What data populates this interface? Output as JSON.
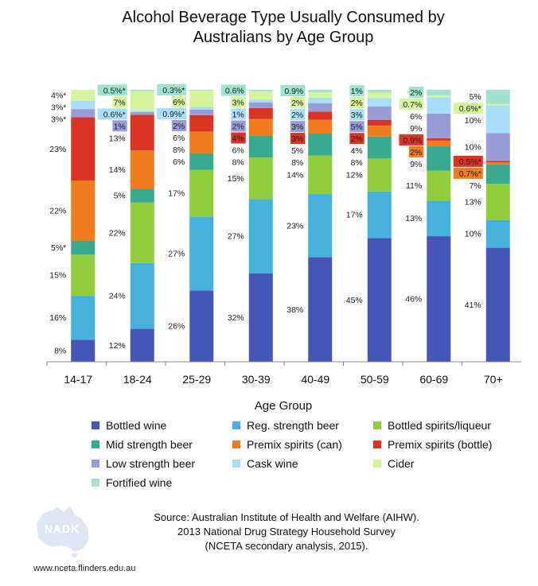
{
  "chart_data": {
    "type": "stacked-bar",
    "title": "Alcohol Beverage Type Usually Consumed by Australians by Age Group",
    "title_lines": [
      "Alcohol Beverage Type Usually Consumed by",
      "Australians by Age Group"
    ],
    "xlabel": "Age Group",
    "ylabel": "",
    "ylim": [
      0,
      100
    ],
    "categories": [
      "14-17",
      "18-24",
      "25-29",
      "30-39",
      "40-49",
      "50-59",
      "60-69",
      "70+"
    ],
    "legend_position": "bottom",
    "series": [
      {
        "name": "Bottled wine",
        "color": "#4556b4",
        "values": [
          8,
          12,
          26,
          32,
          38,
          45,
          46,
          41
        ],
        "labels": [
          "8%",
          "12%",
          "26%",
          "32%",
          "38%",
          "45%",
          "46%",
          "41%"
        ]
      },
      {
        "name": "Reg. strength beer",
        "color": "#45b1dc",
        "values": [
          16,
          24,
          27,
          27,
          23,
          17,
          13,
          10
        ],
        "labels": [
          "16%",
          "24%",
          "27%",
          "27%",
          "23%",
          "17%",
          "13%",
          "10%"
        ]
      },
      {
        "name": "Bottled spirits/liqueur",
        "color": "#8fcd3d",
        "values": [
          15,
          22,
          17,
          15,
          14,
          12,
          11,
          13
        ],
        "labels": [
          "15%",
          "22%",
          "17%",
          "15%",
          "14%",
          "12%",
          "11%",
          "13%"
        ]
      },
      {
        "name": "Mid strength beer",
        "color": "#3aaa8e",
        "values": [
          5,
          5,
          6,
          8,
          8,
          8,
          9,
          7
        ],
        "labels": [
          "5%*",
          "5%",
          "6%",
          "8%",
          "8%",
          "8%",
          "9%",
          "7%"
        ]
      },
      {
        "name": "Premix spirits (can)",
        "color": "#ef7c1e",
        "values": [
          22,
          14,
          8,
          6,
          5,
          4,
          2,
          0.7
        ],
        "labels": [
          "22%",
          "14%",
          "8%",
          "6%",
          "5%",
          "4%",
          "2%",
          "0.7%*"
        ]
      },
      {
        "name": "Premix spirits (bottle)",
        "color": "#db3425",
        "values": [
          23,
          13,
          6,
          4,
          3,
          2,
          0.9,
          0.5
        ],
        "labels": [
          "23%",
          "13%",
          "6%",
          "4%",
          "3%",
          "2%",
          "0.9%",
          "0.5%*"
        ]
      },
      {
        "name": "Low strength beer",
        "color": "#9a9cd8",
        "values": [
          3,
          1,
          2,
          2,
          3,
          5,
          9,
          10
        ],
        "labels": [
          "3%*",
          "1%",
          "2%",
          "2%",
          "3%",
          "5%",
          "9%",
          "10%"
        ]
      },
      {
        "name": "Cask wine",
        "color": "#a9defa",
        "values": [
          3,
          0.6,
          0.9,
          1,
          2,
          3,
          6,
          10
        ],
        "labels": [
          "3%*",
          "0.6%*",
          "0.9%*",
          "1%",
          "2%",
          "3%",
          "6%",
          "10%"
        ]
      },
      {
        "name": "Cider",
        "color": "#d5f59d",
        "values": [
          4,
          7,
          6,
          3,
          2,
          2,
          0.7,
          0.6
        ],
        "labels": [
          "4%*",
          "7%",
          "6%",
          "3%",
          "2%",
          "2%",
          "0.7%",
          "0.6%*"
        ]
      },
      {
        "name": "Fortified wine",
        "color": "#9fe2d0",
        "values": [
          0,
          0.5,
          0.3,
          0.6,
          0.9,
          1,
          2,
          5
        ],
        "labels": [
          "",
          "0.5%*",
          "0.3%*",
          "0.6%",
          "0.9%",
          "1%",
          "2%",
          "5%"
        ]
      }
    ],
    "label_style": {
      "0": [
        "plain",
        "boxed",
        "boxed",
        "boxed",
        "boxed",
        "boxed",
        "boxed",
        "plain"
      ],
      "1": [
        "",
        "",
        "",
        "",
        "",
        "",
        "",
        ""
      ]
    },
    "boxed_labels": [
      {
        "cat": 1,
        "series": 9
      },
      {
        "cat": 1,
        "series": 8
      },
      {
        "cat": 1,
        "series": 7
      },
      {
        "cat": 1,
        "series": 6
      },
      {
        "cat": 2,
        "series": 9
      },
      {
        "cat": 2,
        "series": 8
      },
      {
        "cat": 2,
        "series": 7
      },
      {
        "cat": 2,
        "series": 6
      },
      {
        "cat": 3,
        "series": 9
      },
      {
        "cat": 3,
        "series": 8
      },
      {
        "cat": 3,
        "series": 7
      },
      {
        "cat": 3,
        "series": 6
      },
      {
        "cat": 3,
        "series": 5
      },
      {
        "cat": 4,
        "series": 9
      },
      {
        "cat": 4,
        "series": 8
      },
      {
        "cat": 4,
        "series": 7
      },
      {
        "cat": 4,
        "series": 6
      },
      {
        "cat": 4,
        "series": 5
      },
      {
        "cat": 5,
        "series": 9
      },
      {
        "cat": 5,
        "series": 8
      },
      {
        "cat": 5,
        "series": 7
      },
      {
        "cat": 5,
        "series": 6
      },
      {
        "cat": 5,
        "series": 5
      },
      {
        "cat": 6,
        "series": 9
      },
      {
        "cat": 6,
        "series": 8
      },
      {
        "cat": 6,
        "series": 5
      },
      {
        "cat": 6,
        "series": 4
      },
      {
        "cat": 7,
        "series": 8
      },
      {
        "cat": 7,
        "series": 5
      },
      {
        "cat": 7,
        "series": 4
      }
    ]
  },
  "source": {
    "lines": [
      "Source: Australian Institute of Health and Welfare (AIHW).",
      "2013 National Drug Strategy Household Survey",
      "(NCETA secondary analysis, 2015)."
    ]
  },
  "logo": {
    "text": "NADK"
  },
  "website": "www.nceta.flinders.edu.au"
}
